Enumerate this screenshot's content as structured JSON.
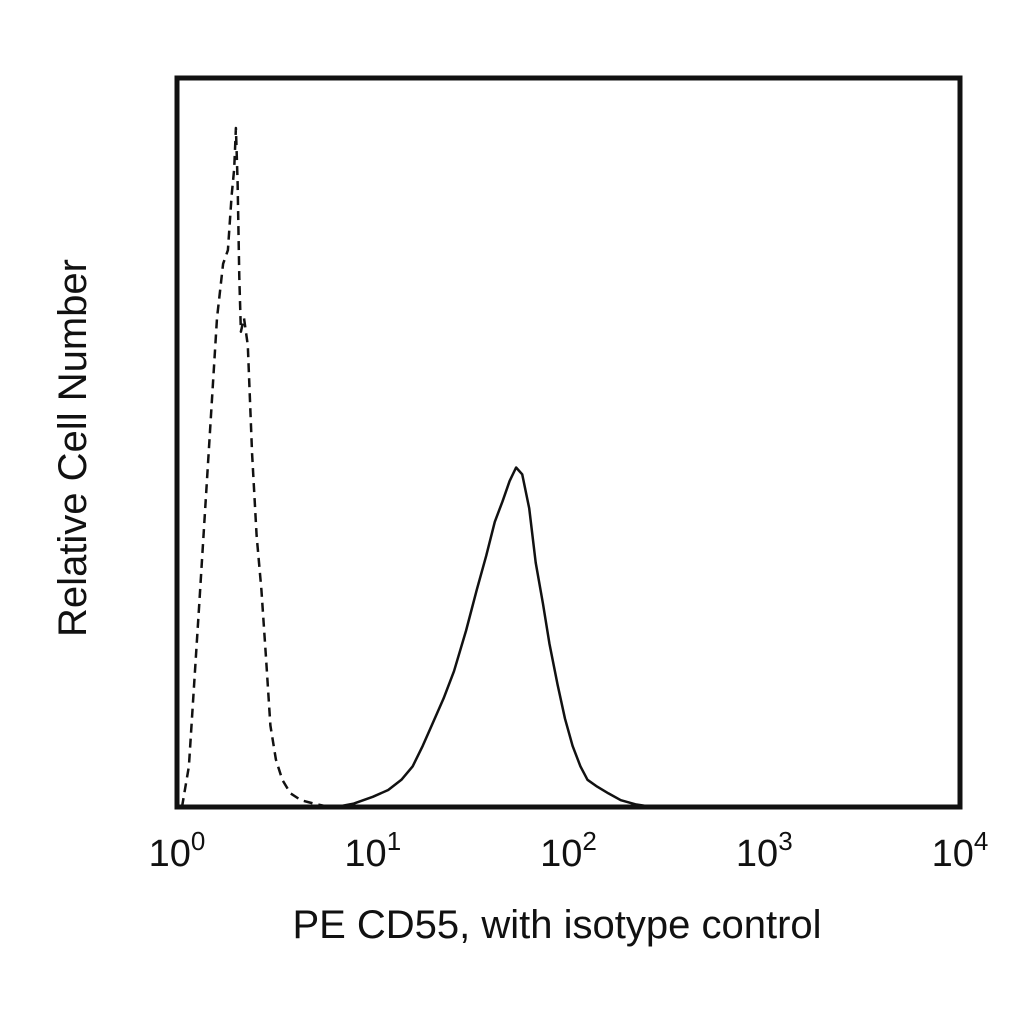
{
  "chart_data": {
    "type": "line",
    "title": "",
    "xlabel": "PE CD55, with isotype control",
    "ylabel": "Relative Cell Number",
    "x_scale": "log",
    "xlim": [
      1,
      10000
    ],
    "ylim": [
      0,
      100
    ],
    "grid": false,
    "legend": "none",
    "x_ticks": [
      {
        "base": "10",
        "exp": "0",
        "value": 1
      },
      {
        "base": "10",
        "exp": "1",
        "value": 10
      },
      {
        "base": "10",
        "exp": "2",
        "value": 100
      },
      {
        "base": "10",
        "exp": "3",
        "value": 1000
      },
      {
        "base": "10",
        "exp": "4",
        "value": 10000
      }
    ],
    "series": [
      {
        "style": "dashed",
        "color": "#111111",
        "x": [
          1.06,
          1.15,
          1.3,
          1.45,
          1.6,
          1.72,
          1.82,
          1.9,
          1.96,
          2.0,
          2.04,
          2.08,
          2.12,
          2.2,
          2.3,
          2.42,
          2.55,
          2.7,
          2.85,
          3.0,
          3.2,
          3.45,
          3.8,
          4.3,
          5.0,
          6.0
        ],
        "y": [
          0,
          6,
          30,
          52,
          72,
          80,
          82,
          90,
          94,
          100,
          92,
          78,
          70,
          72,
          68,
          52,
          40,
          32,
          22,
          12,
          7,
          4,
          2,
          1,
          0.5,
          0
        ]
      },
      {
        "style": "solid",
        "color": "#111111",
        "x": [
          6.5,
          8.0,
          10.0,
          12.0,
          14.0,
          16.0,
          18.0,
          20.0,
          23.0,
          26.0,
          30.0,
          34.0,
          38.0,
          42.0,
          46.0,
          50.0,
          54.0,
          58.0,
          63.0,
          68.0,
          74.0,
          80.0,
          88.0,
          96.0,
          105.0,
          115.0,
          125.0,
          140.0,
          160.0,
          185.0,
          220.0,
          270.0
        ],
        "y": [
          0,
          0.5,
          1.5,
          2.5,
          4,
          6,
          9,
          12,
          16,
          20,
          26,
          32,
          37,
          42,
          45,
          48,
          50,
          49,
          44,
          36,
          30,
          24,
          18,
          13,
          9,
          6,
          4,
          3,
          2,
          1,
          0.4,
          0
        ]
      }
    ]
  }
}
